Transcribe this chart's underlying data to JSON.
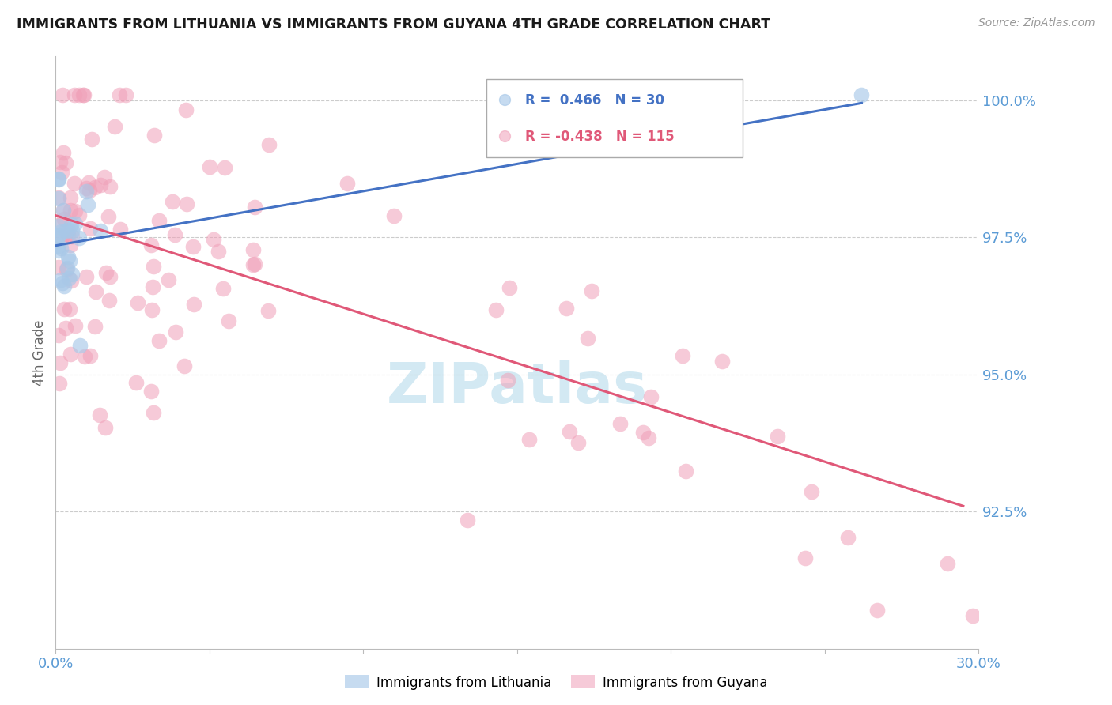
{
  "title": "IMMIGRANTS FROM LITHUANIA VS IMMIGRANTS FROM GUYANA 4TH GRADE CORRELATION CHART",
  "source": "Source: ZipAtlas.com",
  "ylabel": "4th Grade",
  "xlim": [
    0.0,
    0.3
  ],
  "ylim": [
    0.9,
    1.008
  ],
  "yticks": [
    0.925,
    0.95,
    0.975,
    1.0
  ],
  "ytick_labels": [
    "92.5%",
    "95.0%",
    "97.5%",
    "100.0%"
  ],
  "xtick_positions": [
    0.0,
    0.05,
    0.1,
    0.15,
    0.2,
    0.25,
    0.3
  ],
  "xtick_labels": [
    "0.0%",
    "",
    "",
    "",
    "",
    "",
    "30.0%"
  ],
  "lithuania_color": "#a8c8e8",
  "guyana_color": "#f0a0b8",
  "lithuania_line_color": "#4472c4",
  "guyana_line_color": "#e05878",
  "R_lithuania": 0.466,
  "N_lithuania": 30,
  "R_guyana": -0.438,
  "N_guyana": 115,
  "legend_label_1": "Immigrants from Lithuania",
  "legend_label_2": "Immigrants from Guyana",
  "axis_label_color": "#5b9bd5",
  "watermark_text": "ZIPatlas",
  "watermark_color": "#c8e4f0",
  "lith_line_x0": 0.0,
  "lith_line_x1": 0.262,
  "lith_line_y0": 0.9735,
  "lith_line_y1": 0.9995,
  "guy_line_x0": 0.0,
  "guy_line_x1": 0.295,
  "guy_line_y0": 0.979,
  "guy_line_y1": 0.926
}
